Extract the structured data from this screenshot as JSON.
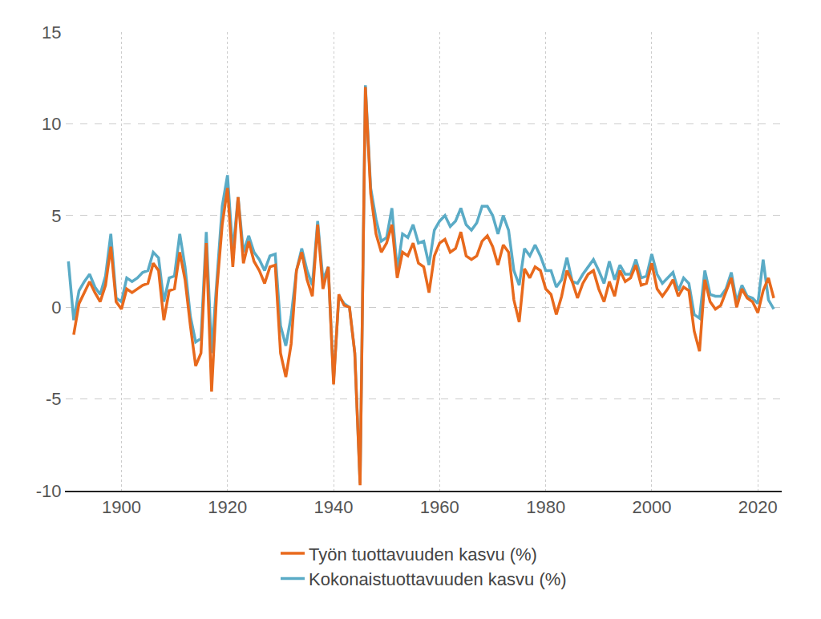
{
  "chart_data": {
    "type": "line",
    "x": [
      1890,
      1891,
      1892,
      1893,
      1894,
      1895,
      1896,
      1897,
      1898,
      1899,
      1900,
      1901,
      1902,
      1903,
      1904,
      1905,
      1906,
      1907,
      1908,
      1909,
      1910,
      1911,
      1912,
      1913,
      1914,
      1915,
      1916,
      1917,
      1918,
      1919,
      1920,
      1921,
      1922,
      1923,
      1924,
      1925,
      1926,
      1927,
      1928,
      1929,
      1930,
      1931,
      1932,
      1933,
      1934,
      1935,
      1936,
      1937,
      1938,
      1939,
      1940,
      1941,
      1942,
      1943,
      1944,
      1945,
      1946,
      1947,
      1948,
      1949,
      1950,
      1951,
      1952,
      1953,
      1954,
      1955,
      1956,
      1957,
      1958,
      1959,
      1960,
      1961,
      1962,
      1963,
      1964,
      1965,
      1966,
      1967,
      1968,
      1969,
      1970,
      1971,
      1972,
      1973,
      1974,
      1975,
      1976,
      1977,
      1978,
      1979,
      1980,
      1981,
      1982,
      1983,
      1984,
      1985,
      1986,
      1987,
      1988,
      1989,
      1990,
      1991,
      1992,
      1993,
      1994,
      1995,
      1996,
      1997,
      1998,
      1999,
      2000,
      2001,
      2002,
      2003,
      2004,
      2005,
      2006,
      2007,
      2008,
      2009,
      2010,
      2011,
      2012,
      2013,
      2014,
      2015,
      2016,
      2017,
      2018,
      2019,
      2020,
      2021,
      2022,
      2023
    ],
    "series": [
      {
        "name": "Työn tuottavuuden kasvu (%)",
        "color": "#e8691c",
        "values": [
          null,
          -1.5,
          0.2,
          0.8,
          1.4,
          0.8,
          0.3,
          1.2,
          3.3,
          0.3,
          -0.1,
          1.0,
          0.8,
          1.0,
          1.2,
          1.3,
          2.4,
          2.0,
          -0.7,
          0.9,
          1.0,
          3.0,
          1.5,
          -1.0,
          -3.2,
          -2.5,
          3.5,
          -4.6,
          1.0,
          4.5,
          6.5,
          2.2,
          6.0,
          2.4,
          3.6,
          2.5,
          2.0,
          1.3,
          2.2,
          2.3,
          -2.5,
          -3.8,
          -2.0,
          2.0,
          3.0,
          1.5,
          0.6,
          4.5,
          1.0,
          2.2,
          -4.2,
          0.7,
          0.1,
          0.0,
          -2.5,
          -9.7,
          12.0,
          6.2,
          4.0,
          3.0,
          3.5,
          4.5,
          1.6,
          3.0,
          2.8,
          3.5,
          2.4,
          2.2,
          0.8,
          2.8,
          3.5,
          3.7,
          3.0,
          3.2,
          4.1,
          2.8,
          2.6,
          2.8,
          3.6,
          3.9,
          3.3,
          2.3,
          3.4,
          3.0,
          0.4,
          -0.8,
          2.1,
          1.6,
          2.2,
          2.0,
          1.0,
          0.7,
          -0.4,
          0.6,
          2.0,
          1.4,
          0.5,
          1.3,
          1.8,
          2.0,
          1.0,
          0.3,
          1.4,
          0.6,
          2.0,
          1.4,
          1.6,
          2.3,
          1.2,
          1.3,
          2.4,
          1.0,
          0.6,
          1.0,
          1.5,
          0.6,
          1.1,
          0.9,
          -1.3,
          -2.4,
          1.5,
          0.3,
          -0.1,
          0.1,
          0.8,
          1.6,
          0.0,
          1.0,
          0.5,
          0.3,
          -0.3,
          0.9,
          1.6,
          0.5
        ]
      },
      {
        "name": "Kokonaistuottavuuden kasvu (%)",
        "color": "#5aabc6",
        "values": [
          2.5,
          -0.7,
          0.9,
          1.4,
          1.8,
          1.1,
          0.7,
          1.7,
          4.0,
          0.5,
          0.3,
          1.6,
          1.4,
          1.6,
          1.9,
          2.0,
          3.0,
          2.7,
          0.3,
          1.6,
          1.7,
          4.0,
          2.2,
          -0.5,
          -1.9,
          -1.7,
          4.1,
          -2.5,
          1.5,
          5.5,
          7.2,
          3.0,
          6.0,
          3.0,
          3.9,
          3.0,
          2.6,
          2.0,
          2.8,
          2.9,
          -1.0,
          -2.1,
          -0.5,
          2.0,
          3.2,
          2.0,
          1.2,
          4.7,
          1.5,
          2.2,
          -4.0,
          0.6,
          0.2,
          0.0,
          -2.5,
          -9.6,
          12.1,
          6.5,
          4.8,
          3.6,
          3.8,
          5.4,
          2.0,
          4.0,
          3.8,
          4.5,
          3.5,
          3.6,
          2.3,
          4.2,
          4.7,
          5.0,
          4.4,
          4.7,
          5.4,
          4.5,
          4.2,
          4.6,
          5.5,
          5.5,
          5.0,
          4.0,
          5.0,
          4.2,
          2.0,
          1.2,
          3.2,
          2.8,
          3.4,
          2.8,
          2.0,
          2.0,
          1.1,
          1.5,
          2.7,
          1.4,
          1.3,
          1.8,
          2.2,
          2.6,
          2.0,
          1.3,
          2.5,
          1.5,
          2.3,
          1.8,
          1.8,
          2.6,
          1.6,
          1.7,
          2.9,
          1.8,
          1.3,
          1.6,
          1.9,
          0.9,
          1.6,
          1.3,
          -0.4,
          -0.6,
          2.0,
          0.7,
          0.6,
          0.6,
          1.0,
          1.9,
          0.3,
          1.2,
          0.6,
          0.5,
          0.2,
          2.6,
          0.4,
          -0.1
        ]
      }
    ],
    "xlim": [
      1889.5,
      2024.5
    ],
    "xticks": [
      1900,
      1920,
      1940,
      1960,
      1980,
      2000,
      2020
    ],
    "ylim": [
      -10,
      15
    ],
    "yticks": [
      -10,
      -5,
      0,
      5,
      10,
      15
    ],
    "grid": true,
    "legend": "bottom"
  }
}
